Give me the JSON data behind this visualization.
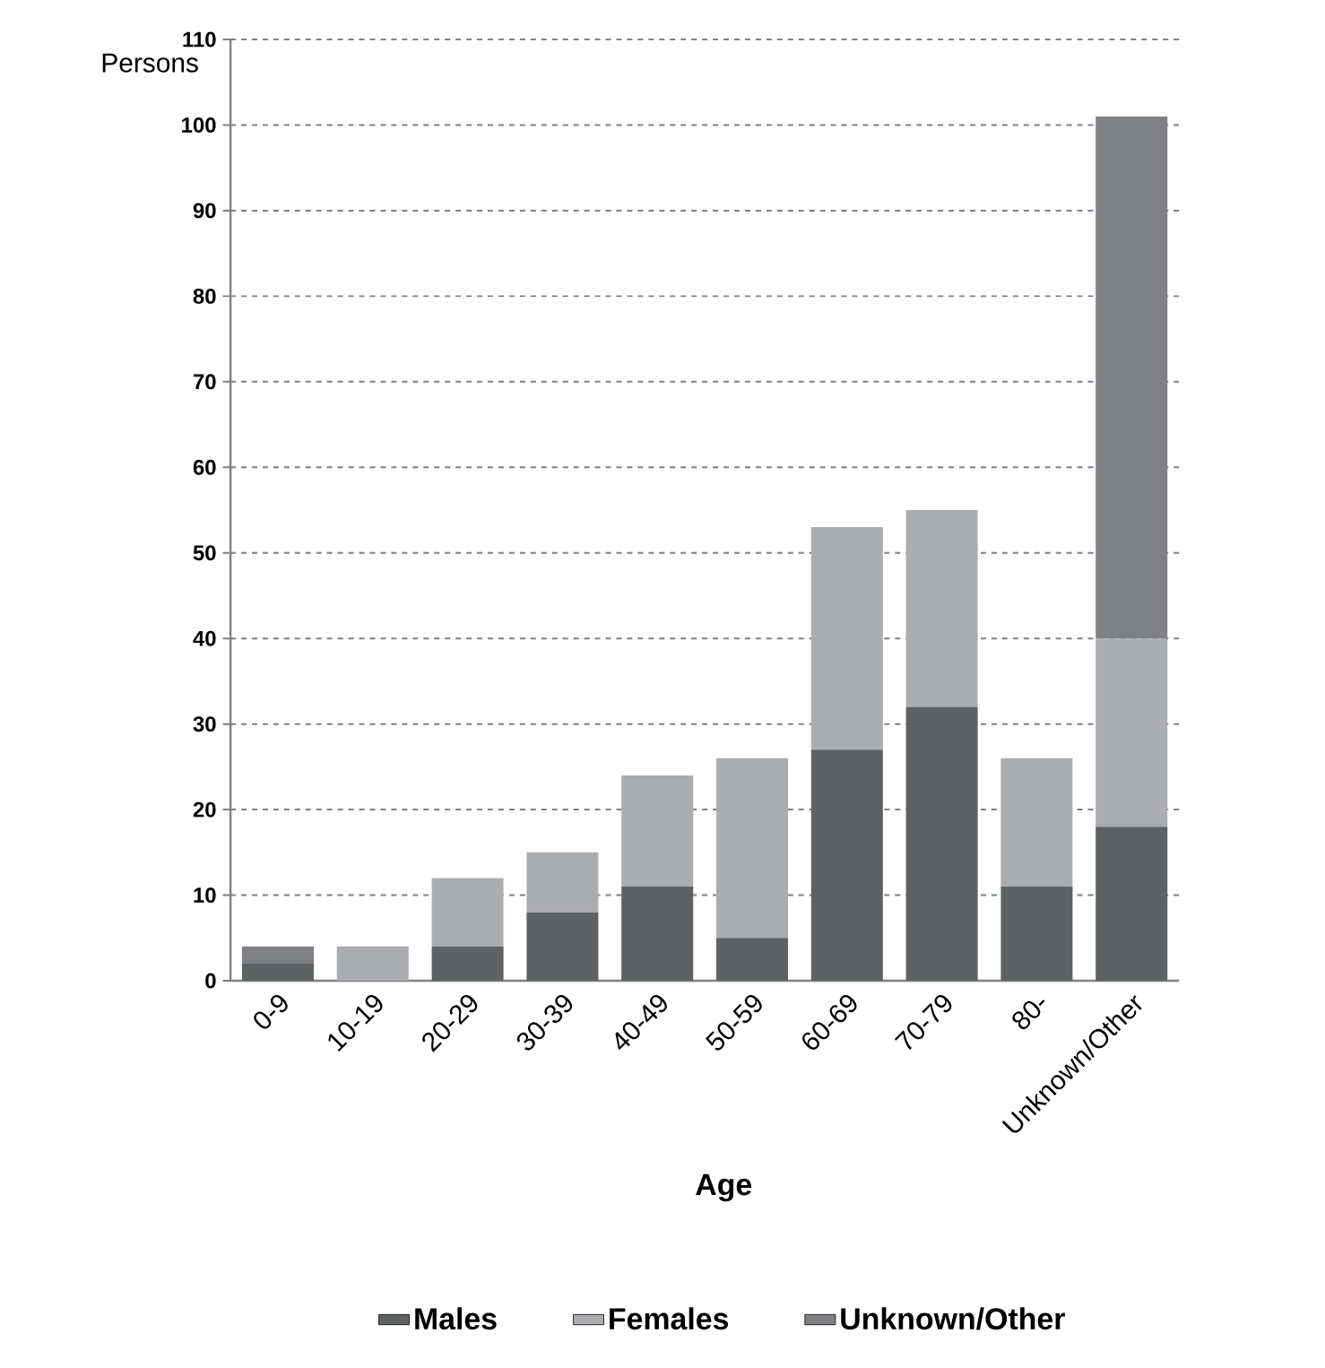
{
  "chart_data": {
    "type": "bar",
    "stacked": true,
    "xlabel": "Age",
    "ylabel": "Persons",
    "categories": [
      "0-9",
      "10-19",
      "20-29",
      "30-39",
      "40-49",
      "50-59",
      "60-69",
      "70-79",
      "80-",
      "Unknown/Other"
    ],
    "series": [
      {
        "name": "Males",
        "color": "#5f6262",
        "values": [
          2,
          0,
          4,
          8,
          11,
          5,
          27,
          32,
          11,
          18
        ]
      },
      {
        "name": "Females",
        "color": "#abacaf",
        "values": [
          0,
          4,
          8,
          7,
          13,
          21,
          26,
          23,
          15,
          22
        ]
      },
      {
        "name": "Unknown/Other",
        "color": "#808184",
        "values": [
          2,
          0,
          0,
          0,
          0,
          0,
          0,
          0,
          0,
          61
        ]
      }
    ],
    "ylim": [
      0,
      110
    ],
    "yticks": [
      0,
      10,
      20,
      30,
      40,
      50,
      60,
      70,
      80,
      90,
      100,
      110
    ],
    "grid": "y",
    "legend": "bottom"
  }
}
